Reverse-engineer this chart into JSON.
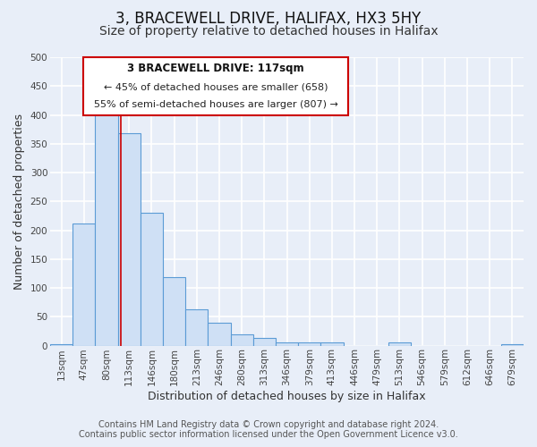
{
  "title": "3, BRACEWELL DRIVE, HALIFAX, HX3 5HY",
  "subtitle": "Size of property relative to detached houses in Halifax",
  "xlabel": "Distribution of detached houses by size in Halifax",
  "ylabel": "Number of detached properties",
  "bin_labels": [
    "13sqm",
    "47sqm",
    "80sqm",
    "113sqm",
    "146sqm",
    "180sqm",
    "213sqm",
    "246sqm",
    "280sqm",
    "313sqm",
    "346sqm",
    "379sqm",
    "413sqm",
    "446sqm",
    "479sqm",
    "513sqm",
    "546sqm",
    "579sqm",
    "612sqm",
    "646sqm",
    "679sqm"
  ],
  "bar_values": [
    3,
    212,
    403,
    368,
    230,
    118,
    63,
    39,
    19,
    13,
    5,
    5,
    5,
    0,
    0,
    6,
    0,
    0,
    0,
    0,
    3
  ],
  "bar_color": "#cfe0f5",
  "bar_edge_color": "#5b9bd5",
  "ylim": [
    0,
    500
  ],
  "yticks": [
    0,
    50,
    100,
    150,
    200,
    250,
    300,
    350,
    400,
    450,
    500
  ],
  "vline_x": 2.65,
  "vline_color": "#cc0000",
  "annotation_text_line1": "3 BRACEWELL DRIVE: 117sqm",
  "annotation_text_line2": "← 45% of detached houses are smaller (658)",
  "annotation_text_line3": "55% of semi-detached houses are larger (807) →",
  "footer_line1": "Contains HM Land Registry data © Crown copyright and database right 2024.",
  "footer_line2": "Contains public sector information licensed under the Open Government Licence v3.0.",
  "bg_color": "#e8eef8",
  "plot_bg_color": "#e8eef8",
  "grid_color": "#ffffff",
  "annotation_box_edge": "#cc0000",
  "title_fontsize": 12,
  "subtitle_fontsize": 10,
  "axis_label_fontsize": 9,
  "tick_fontsize": 7.5,
  "footer_fontsize": 7
}
